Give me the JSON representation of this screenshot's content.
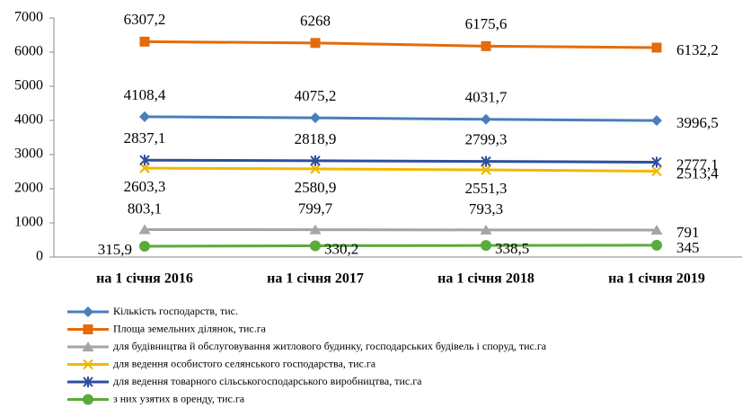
{
  "chart_data": {
    "type": "line",
    "categories": [
      "на 1 січня 2016",
      "на 1 січня 2017",
      "на 1 січня 2018",
      "на 1 січня 2019"
    ],
    "series": [
      {
        "name": "Кількість господарств, тис.",
        "color": "#4a7ebb",
        "marker": "diamond",
        "values": [
          4108.4,
          4075.2,
          4031.7,
          3996.5
        ],
        "value_labels": [
          "4108,4",
          "4075,2",
          "4031,7",
          "3996,5"
        ]
      },
      {
        "name": "Площа земельних ділянок, тис.га",
        "color": "#e46c0a",
        "marker": "square",
        "values": [
          6307.2,
          6268,
          6175.6,
          6132.2
        ],
        "value_labels": [
          "6307,2",
          "6268",
          "6175,6",
          "6132,2"
        ]
      },
      {
        "name": "для будівництва й обслуговування житлового будинку, господарських будівель і споруд, тис.га",
        "color": "#a5a5a5",
        "marker": "triangle",
        "values": [
          803.1,
          799.7,
          793.3,
          791
        ],
        "value_labels": [
          "803,1",
          "799,7",
          "793,3",
          "791"
        ]
      },
      {
        "name": "для ведення особистого селянського господарства, тис.га",
        "color": "#f2b800",
        "marker": "x",
        "values": [
          2603.3,
          2580.9,
          2551.3,
          2513.4
        ],
        "value_labels": [
          "2603,3",
          "2580,9",
          "2551,3",
          "2513,4"
        ]
      },
      {
        "name": "для ведення товарного сільськогосподарського виробництва, тис.га",
        "color": "#2f4f9e",
        "marker": "star",
        "values": [
          2837.1,
          2818.9,
          2799.3,
          2777.1
        ],
        "value_labels": [
          "2837,1",
          "2818,9",
          "2799,3",
          "2777,1"
        ]
      },
      {
        "name": "з них узятих в оренду,  тис.га",
        "color": "#5aaa3c",
        "marker": "circle",
        "values": [
          315.9,
          330.2,
          338.5,
          345
        ],
        "value_labels": [
          "315,9",
          "330,2",
          "338,5",
          "345"
        ]
      }
    ],
    "ylim": [
      0,
      7000
    ],
    "yticks": [
      0,
      1000,
      2000,
      3000,
      4000,
      5000,
      6000,
      7000
    ],
    "grid": false
  }
}
